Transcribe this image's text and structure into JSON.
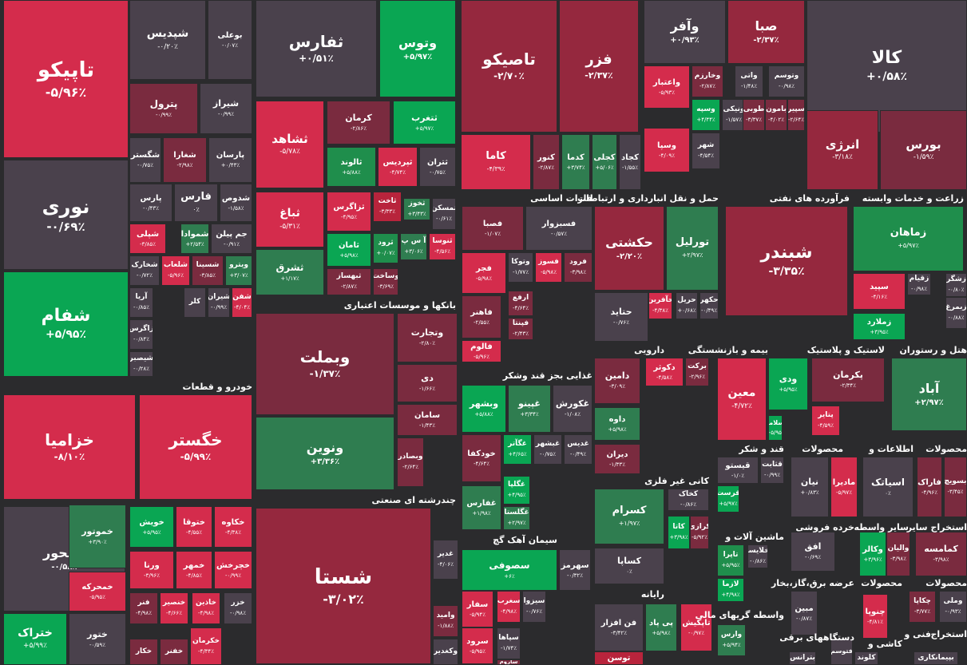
{
  "colors": {
    "bg": "#2b2b2d",
    "gray": "#4a414c",
    "lred": "#d42c4c",
    "red": "#b8243c",
    "dred": "#7a2b3f",
    "mred": "#95283e",
    "green": "#0aa653",
    "dgreen": "#2f7d50",
    "sgreen": "#1f8e4c"
  },
  "sectors": [
    {
      "id": "sec-auto",
      "label": "خودرو و قطعات"
    },
    {
      "id": "sec-banks",
      "label": "بانکها و موسسات اعتباری"
    },
    {
      "id": "sec-multi",
      "label": "چندرشته ای صنعتی"
    },
    {
      "id": "sec-metals",
      "label": "فلزات اساسی"
    },
    {
      "id": "sec-transport",
      "label": "حمل و نقل انبارداری و ارتباطات"
    },
    {
      "id": "sec-refinery",
      "label": "فرآورده های نفتی"
    },
    {
      "id": "sec-agri",
      "label": "زراعت و خدمات وابسته"
    },
    {
      "id": "sec-food",
      "label": "غذایی بجز قند وشکر"
    },
    {
      "id": "sec-pharma",
      "label": "دارویی"
    },
    {
      "id": "sec-insurance",
      "label": "بیمه و بازنشستگی"
    },
    {
      "id": "sec-plastic",
      "label": "لاستیک و پلاستیک"
    },
    {
      "id": "sec-hotel",
      "label": "هتل و رستوران"
    },
    {
      "id": "sec-sugar",
      "label": "قند و شکر"
    },
    {
      "id": "sec-products",
      "label": "محصولات"
    },
    {
      "id": "sec-info",
      "label": "اطلاعات و"
    },
    {
      "id": "sec-products2",
      "label": "محصولات"
    },
    {
      "id": "sec-nonmetal",
      "label": "کانی غیر فلزی"
    },
    {
      "id": "sec-machinery",
      "label": "ماشین آلات و"
    },
    {
      "id": "sec-retail",
      "label": "خرده فروشی"
    },
    {
      "id": "sec-intermed",
      "label": "سایر واسطه"
    },
    {
      "id": "sec-mining",
      "label": "استخراج سایر"
    },
    {
      "id": "sec-cement",
      "label": "سیمان آهک گچ"
    },
    {
      "id": "sec-computer",
      "label": "رایانه"
    },
    {
      "id": "sec-brokers",
      "label": "واسطه گریهای مالی"
    },
    {
      "id": "sec-electric",
      "label": "عرضه برق،گاز،بخار"
    },
    {
      "id": "sec-products3",
      "label": "محصولات"
    },
    {
      "id": "sec-products4",
      "label": "محصولات"
    },
    {
      "id": "sec-devices",
      "label": "دستگاههای برقی"
    },
    {
      "id": "sec-paper",
      "label": "کاشی و"
    },
    {
      "id": "sec-tech",
      "label": "فنی و"
    },
    {
      "id": "sec-extract",
      "label": "استخراج"
    }
  ],
  "tiles": [
    {
      "name": "تاپیکو",
      "pct": "-۵/۹۶٪",
      "c": "lred"
    },
    {
      "name": "نوری",
      "pct": "-۰/۶۹٪",
      "c": "gray"
    },
    {
      "name": "شفام",
      "pct": "+۵/۹۵٪",
      "c": "green"
    },
    {
      "name": "شپدیس",
      "pct": "-۰/۲۰٪",
      "c": "gray"
    },
    {
      "name": "بوعلی",
      "pct": "-۰/۰۷٪",
      "c": "gray"
    },
    {
      "name": "پترول",
      "pct": "-۰/۹۹٪",
      "c": "dred"
    },
    {
      "name": "شیراز",
      "pct": "-۰/۹۹٪",
      "c": "gray"
    },
    {
      "name": "شگستر",
      "pct": "-۰/۷۵٪",
      "c": "gray"
    },
    {
      "name": "شغدیر",
      "pct": "-۰/۲۹٪",
      "c": "gray"
    },
    {
      "name": "شغارا",
      "pct": "-۲/۹۸٪",
      "c": "dred"
    },
    {
      "name": "پارسان",
      "pct": "+۰/۴۳٪",
      "c": "gray"
    },
    {
      "name": "پارس",
      "pct": "-۰/۴۳٪",
      "c": "gray"
    },
    {
      "name": "فارس",
      "pct": "۰٪",
      "c": "gray"
    },
    {
      "name": "شدوص",
      "pct": "-۱/۵۸٪",
      "c": "gray"
    },
    {
      "name": "شپلی",
      "pct": "-۳/۸۵٪",
      "c": "lred"
    },
    {
      "name": "شصدف",
      "pct": "",
      "c": "dred"
    },
    {
      "name": "شموادا",
      "pct": "+۲/۵۴٪",
      "c": "dgreen"
    },
    {
      "name": "جم پیلن",
      "pct": "-۰/۹۱٪",
      "c": "gray"
    },
    {
      "name": "شخارک",
      "pct": "-۰/۷۲٪",
      "c": "gray"
    },
    {
      "name": "شلعاب",
      "pct": "-۵/۹۶٪",
      "c": "lred"
    },
    {
      "name": "شسینا",
      "pct": "-۳/۸۵٪",
      "c": "dred"
    },
    {
      "name": "ویترو",
      "pct": "+۳/۰۷٪",
      "c": "dgreen"
    },
    {
      "name": "آریا",
      "pct": "-۰/۸۵٪",
      "c": "gray"
    },
    {
      "name": "کلر",
      "pct": "",
      "c": "gray"
    },
    {
      "name": "شیران",
      "pct": "-۰/۹۹٪",
      "c": "gray"
    },
    {
      "name": "شفن",
      "pct": "-۴/۰۴٪",
      "c": "lred"
    },
    {
      "name": "زاگرس",
      "pct": "-۰/۸۴٪",
      "c": "gray"
    },
    {
      "name": "شیصبر",
      "pct": "-۰/۲۸٪",
      "c": "gray"
    },
    {
      "name": "ثفارس",
      "pct": "+۰/۵۱٪",
      "c": "gray"
    },
    {
      "name": "وتوس",
      "pct": "+۵/۹۷٪",
      "c": "green"
    },
    {
      "name": "ثشاهد",
      "pct": "-۵/۷۸٪",
      "c": "lred"
    },
    {
      "name": "کرمان",
      "pct": "-۲/۸۶٪",
      "c": "dred"
    },
    {
      "name": "ثتغرب",
      "pct": "+۵/۹۷٪",
      "c": "green"
    },
    {
      "name": "ثالوند",
      "pct": "+۵/۸۸٪",
      "c": "sgreen"
    },
    {
      "name": "ثپردیس",
      "pct": "-۴/۷۴٪",
      "c": "lred"
    },
    {
      "name": "ثتران",
      "pct": "-۰/۷۵٪",
      "c": "gray"
    },
    {
      "name": "ثباغ",
      "pct": "-۵/۳۱٪",
      "c": "lred"
    },
    {
      "name": "ثزاگرس",
      "pct": "-۴/۹۵٪",
      "c": "lred"
    },
    {
      "name": "ثاخت",
      "pct": "-۳/۳۳٪",
      "c": "red"
    },
    {
      "name": "ثخوز",
      "pct": "+۳/۴۳٪",
      "c": "dgreen"
    },
    {
      "name": "ثمسکن",
      "pct": "-۰/۶۱٪",
      "c": "gray"
    },
    {
      "name": "ثامان",
      "pct": "+۵/۹۸٪",
      "c": "green"
    },
    {
      "name": "ثرود",
      "pct": "+۰/۰۷٪",
      "c": "sgreen"
    },
    {
      "name": "آ س پ",
      "pct": "+۳/۰۶٪",
      "c": "dgreen"
    },
    {
      "name": "ثنوسا",
      "pct": "-۴/۵۶٪",
      "c": "lred"
    },
    {
      "name": "ثشرق",
      "pct": "+۱/۱۷٪",
      "c": "dgreen"
    },
    {
      "name": "ثبهساز",
      "pct": "-۲/۸۷٪",
      "c": "dred"
    },
    {
      "name": "وساخت",
      "pct": "-۳/۶۹٪",
      "c": "dred"
    },
    {
      "name": "وبملت",
      "pct": "-۱/۳۷٪",
      "c": "dred"
    },
    {
      "name": "وتجارت",
      "pct": "-۲/۸۰٪",
      "c": "dred"
    },
    {
      "name": "دی",
      "pct": "-۱/۶۶٪",
      "c": "dred"
    },
    {
      "name": "ونوین",
      "pct": "+۳/۳۶٪",
      "c": "dgreen"
    },
    {
      "name": "سامان",
      "pct": "-۱/۴۳٪",
      "c": "dred"
    },
    {
      "name": "وبصادر",
      "pct": "-۲/۶۴٪",
      "c": "dred"
    },
    {
      "name": "شستا",
      "pct": "-۳/۰۲٪",
      "c": "mred"
    },
    {
      "name": "تاصیکو",
      "pct": "-۲/۷۰٪",
      "c": "mred"
    },
    {
      "name": "فزر",
      "pct": "-۲/۳۷٪",
      "c": "mred"
    },
    {
      "name": "کاما",
      "pct": "-۴/۳۹٪",
      "c": "lred"
    },
    {
      "name": "کنور",
      "pct": "-۲/۸۷٪",
      "c": "dred"
    },
    {
      "name": "کدما",
      "pct": "+۳/۷۴٪",
      "c": "dgreen"
    },
    {
      "name": "کجلی",
      "pct": "+۵/۰۶٪",
      "c": "dgreen"
    },
    {
      "name": "کجاد",
      "pct": "-۱/۵۵٪",
      "c": "gray"
    },
    {
      "name": "وآفر",
      "pct": "+۰/۹۳٪",
      "c": "gray"
    },
    {
      "name": "صبا",
      "pct": "-۲/۳۷٪",
      "c": "mred"
    },
    {
      "name": "کالا",
      "pct": "+۰/۵۸٪",
      "c": "gray"
    },
    {
      "name": "واعتبار",
      "pct": "-۵/۹۳٪",
      "c": "lred"
    },
    {
      "name": "وخارزم",
      "pct": "-۲/۸۷٪",
      "c": "dred"
    },
    {
      "name": "واتی",
      "pct": "-۱/۴۸٪",
      "c": "gray"
    },
    {
      "name": "وتوسم",
      "pct": "-۰/۹۸٪",
      "c": "gray"
    },
    {
      "name": "وسپه",
      "pct": "+۴/۴۴٪",
      "c": "green"
    },
    {
      "name": "ونیکی",
      "pct": "-۱/۵۷٪",
      "c": "gray"
    },
    {
      "name": "طوبی",
      "pct": "-۳/۳۷٪",
      "c": "dred"
    },
    {
      "name": "بامون",
      "pct": "-۴/۰۲٪",
      "c": "dred"
    },
    {
      "name": "سپیر",
      "pct": "-۲/۶۴٪",
      "c": "dred"
    },
    {
      "name": "وسپا",
      "pct": "-۴/۰۹٪",
      "c": "lred"
    },
    {
      "name": "شهر",
      "pct": "-۴/۵۴٪",
      "c": "gray"
    },
    {
      "name": "انرژی",
      "pct": "-۳/۱۸٪",
      "c": "mred"
    },
    {
      "name": "بورس",
      "pct": "-۱/۵۹٪",
      "c": "dred"
    },
    {
      "name": "فسبزوار",
      "pct": "-۰/۵۷٪",
      "c": "gray"
    },
    {
      "name": "فصبا",
      "pct": "-۱/۰۷٪",
      "c": "dred"
    },
    {
      "name": "فجر",
      "pct": "-۵/۹۸٪",
      "c": "lred"
    },
    {
      "name": "وتوکا",
      "pct": "-۱/۷۷٪",
      "c": "gray"
    },
    {
      "name": "فسوز",
      "pct": "-۵/۹۸٪",
      "c": "lred"
    },
    {
      "name": "فرود",
      "pct": "-۳/۹۸٪",
      "c": "dred"
    },
    {
      "name": "فاهنر",
      "pct": "-۲/۵۵٪",
      "c": "dred"
    },
    {
      "name": "ارفع",
      "pct": "-۴/۶۴٪",
      "c": "dred"
    },
    {
      "name": "فپنتا",
      "pct": "-۲/۴۳٪",
      "c": "dred"
    },
    {
      "name": "فالوم",
      "pct": "-۵/۹۶٪",
      "c": "lred"
    },
    {
      "name": "حکشتی",
      "pct": "-۲/۲۰٪",
      "c": "mred"
    },
    {
      "name": "تورلیل",
      "pct": "+۲/۹۷٪",
      "c": "dgreen"
    },
    {
      "name": "حتاید",
      "pct": "-۰/۷۶٪",
      "c": "gray"
    },
    {
      "name": "حآفرین",
      "pct": "-۴/۳۸٪",
      "c": "lred"
    },
    {
      "name": "حریل",
      "pct": "+۰/۶۸٪",
      "c": "gray"
    },
    {
      "name": "حکهر",
      "pct": "-۰/۴۹٪",
      "c": "gray"
    },
    {
      "name": "شبندر",
      "pct": "-۳/۳۵٪",
      "c": "mred"
    },
    {
      "name": "زماهان",
      "pct": "+۵/۹۷٪",
      "c": "sgreen"
    },
    {
      "name": "سپید",
      "pct": "-۴/۱۶٪",
      "c": "lred"
    },
    {
      "name": "زقیام",
      "pct": "-۰/۹۸٪",
      "c": "gray"
    },
    {
      "name": "زشگر",
      "pct": "-۰/۸۰٪",
      "c": "gray"
    },
    {
      "name": "زملارد",
      "pct": "+۳/۹۵٪",
      "c": "green"
    },
    {
      "name": "زبمرغ",
      "pct": "-۰/۸۸٪",
      "c": "gray"
    },
    {
      "name": "وبشهر",
      "pct": "+۵/۸۸٪",
      "c": "green"
    },
    {
      "name": "غپینو",
      "pct": "+۳/۳۴٪",
      "c": "dgreen"
    },
    {
      "name": "غکورش",
      "pct": "-۱/۰۸٪",
      "c": "gray"
    },
    {
      "name": "خودکفا",
      "pct": "-۴/۶۴٪",
      "c": "dred"
    },
    {
      "name": "غگآتر",
      "pct": "+۴/۶۵٪",
      "c": "green"
    },
    {
      "name": "غبشهر",
      "pct": "-۰/۷۵٪",
      "c": "gray"
    },
    {
      "name": "غدیس",
      "pct": "-۰/۴۹٪",
      "c": "gray"
    },
    {
      "name": "غگلپا",
      "pct": "+۴/۹۵٪",
      "c": "green"
    },
    {
      "name": "غفارس",
      "pct": "+۱/۹۸٪",
      "c": "dgreen"
    },
    {
      "name": "غگلستا",
      "pct": "+۲/۹۷٪",
      "c": "dgreen"
    },
    {
      "name": "دامین",
      "pct": "-۳/۰۹٪",
      "c": "dred"
    },
    {
      "name": "دکوثر",
      "pct": "-۴/۵۸٪",
      "c": "lred"
    },
    {
      "name": "برکت",
      "pct": "-۲/۹۶٪",
      "c": "dred"
    },
    {
      "name": "داوه",
      "pct": "+۵/۹۸٪",
      "c": "dgreen"
    },
    {
      "name": "دیران",
      "pct": "-۱/۳۳٪",
      "c": "dred"
    },
    {
      "name": "معین",
      "pct": "-۴/۷۲٪",
      "c": "lred"
    },
    {
      "name": "ودی",
      "pct": "+۵/۹۵٪",
      "c": "green"
    },
    {
      "name": "وسلامت",
      "pct": "+۵/۹۵٪",
      "c": "green"
    },
    {
      "name": "پکرمان",
      "pct": "-۲/۳۴٪",
      "c": "dred"
    },
    {
      "name": "پتایر",
      "pct": "-۴/۵۹٪",
      "c": "lred"
    },
    {
      "name": "آباد",
      "pct": "+۲/۹۷٪",
      "c": "dgreen"
    },
    {
      "name": "قیستو",
      "pct": "-۱/۰٪",
      "c": "gray"
    },
    {
      "name": "قثابت",
      "pct": "-۰/۹۹٪",
      "c": "gray"
    },
    {
      "name": "قرست",
      "pct": "+۵/۹۷٪",
      "c": "green"
    },
    {
      "name": "نیان",
      "pct": "+۰/۸۳٪",
      "c": "gray"
    },
    {
      "name": "مادیرا",
      "pct": "-۵/۹۷٪",
      "c": "lred"
    },
    {
      "name": "اسیاتک",
      "pct": "۰٪",
      "c": "gray"
    },
    {
      "name": "فاراک",
      "pct": "-۴/۹۶٪",
      "c": "dred"
    },
    {
      "name": "بسویچ",
      "pct": "-۳/۴۵٪",
      "c": "dred"
    },
    {
      "name": "کسرام",
      "pct": "+۱/۹۷٪",
      "c": "dgreen"
    },
    {
      "name": "کخاک",
      "pct": "-۰/۸۶٪",
      "c": "gray"
    },
    {
      "name": "کاتا",
      "pct": "+۳/۹۸٪",
      "c": "green"
    },
    {
      "name": "کرازی",
      "pct": "-۵/۹۲٪",
      "c": "dred"
    },
    {
      "name": "کساپا",
      "pct": "۰٪",
      "c": "gray"
    },
    {
      "name": "تاپرا",
      "pct": "+۵/۹۵٪",
      "c": "sgreen"
    },
    {
      "name": "خلایسا",
      "pct": "-۰/۸۶٪",
      "c": "gray"
    },
    {
      "name": "لازما",
      "pct": "+۴/۹۸٪",
      "c": "green"
    },
    {
      "name": "افق",
      "pct": "-۰/۶۹٪",
      "c": "gray"
    },
    {
      "name": "وکالر",
      "pct": "+۳/۹۶٪",
      "c": "green"
    },
    {
      "name": "والیان",
      "pct": "-۳/۹۸٪",
      "c": "dred"
    },
    {
      "name": "کمامسه",
      "pct": "-۳/۹۸٪",
      "c": "dred"
    },
    {
      "name": "خمحور",
      "pct": "-۰/۵۸٪",
      "c": "gray"
    },
    {
      "name": "خزامیا",
      "pct": "-۸/۱۰٪",
      "c": "lred"
    },
    {
      "name": "خگستر",
      "pct": "-۵/۹۹٪",
      "c": "lred"
    },
    {
      "name": "خموتور",
      "pct": "+۳/۹۰٪",
      "c": "dgreen"
    },
    {
      "name": "خویش",
      "pct": "+۵/۹۵٪",
      "c": "green"
    },
    {
      "name": "ختوقا",
      "pct": "-۴/۵۵٪",
      "c": "lred"
    },
    {
      "name": "خکاوه",
      "pct": "-۴/۳۸٪",
      "c": "lred"
    },
    {
      "name": "خمحرکه",
      "pct": "-۵/۹۵٪",
      "c": "lred"
    },
    {
      "name": "ورنا",
      "pct": "-۳/۹۶٪",
      "c": "lred"
    },
    {
      "name": "خمهر",
      "pct": "-۴/۸۵٪",
      "c": "lred"
    },
    {
      "name": "خچرخش",
      "pct": "-۰/۹۹٪",
      "c": "lred"
    },
    {
      "name": "ختراک",
      "pct": "+۵/۹۹٪",
      "c": "green"
    },
    {
      "name": "فنر",
      "pct": "-۴/۹۸٪",
      "c": "dred"
    },
    {
      "name": "خنصیر",
      "pct": "-۴/۶۶٪",
      "c": "lred"
    },
    {
      "name": "خاذین",
      "pct": "-۴/۹۸٪",
      "c": "lred"
    },
    {
      "name": "خزر",
      "pct": "-۰/۹۸٪",
      "c": "gray"
    },
    {
      "name": "ختور",
      "pct": "-۰/۵۹٪",
      "c": "gray"
    },
    {
      "name": "خکار",
      "pct": "",
      "c": "dred"
    },
    {
      "name": "خکرمان",
      "pct": "-۴/۳۴٪",
      "c": "lred"
    },
    {
      "name": "خفنر",
      "pct": "",
      "c": "dred"
    },
    {
      "name": "سصوفی",
      "pct": "+۶٪",
      "c": "green"
    },
    {
      "name": "سهرمز",
      "pct": "-۰/۳۲٪",
      "c": "gray"
    },
    {
      "name": "سفار",
      "pct": "-۵/۹۴٪",
      "c": "lred"
    },
    {
      "name": "سغرب",
      "pct": "-۴/۹۸٪",
      "c": "lred"
    },
    {
      "name": "سیزوا",
      "pct": "-۰/۷۶٪",
      "c": "gray"
    },
    {
      "name": "سرود",
      "pct": "-۵/۹۵٪",
      "c": "lred"
    },
    {
      "name": "سپاها",
      "pct": "-۱/۷۴٪",
      "c": "gray"
    },
    {
      "name": "ساروم",
      "pct": "",
      "c": "dred"
    },
    {
      "name": "غدیر",
      "pct": "-۴/۰۶٪",
      "c": "gray"
    },
    {
      "name": "وامید",
      "pct": "-۱/۸۸٪",
      "c": "dred"
    },
    {
      "name": "وکغدیر",
      "pct": "",
      "c": "gray"
    },
    {
      "name": "فن افزار",
      "pct": "-۳/۴۲٪",
      "c": "gray"
    },
    {
      "name": "پی پاد",
      "pct": "+۵/۹۸٪",
      "c": "dgreen"
    },
    {
      "name": "تاپکیش",
      "pct": "-۰/۹۷٪",
      "c": "lred"
    },
    {
      "name": "توسن",
      "pct": "",
      "c": "red"
    },
    {
      "name": "وارس",
      "pct": "+۵/۹۴٪",
      "c": "dgreen"
    },
    {
      "name": "مبین",
      "pct": "-۰/۸۷٪",
      "c": "gray"
    },
    {
      "name": "چنوپا",
      "pct": "-۴/۸۱٪",
      "c": "lred"
    },
    {
      "name": "چکاپا",
      "pct": "-۳/۷۷٪",
      "c": "dred"
    },
    {
      "name": "وملی",
      "pct": "-۰/۹۳٪",
      "c": "gray"
    },
    {
      "name": "بترانس",
      "pct": "",
      "c": "gray"
    },
    {
      "name": "کلوند",
      "pct": "",
      "c": "gray"
    },
    {
      "name": "بپیمانکاری",
      "pct": "",
      "c": "gray"
    },
    {
      "name": "فتوسم",
      "pct": "",
      "c": "gray"
    }
  ]
}
